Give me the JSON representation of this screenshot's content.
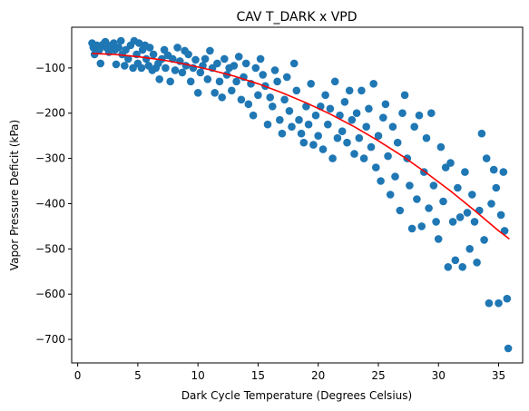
{
  "chart_data": {
    "type": "scatter",
    "title": "CAV T_DARK x VPD",
    "xlabel": "Dark Cycle Temperature (Degrees Celsius)",
    "ylabel": "Vapor Pressure Deficit (kPa)",
    "xlim": [
      -0.5,
      37.0
    ],
    "ylim": [
      -752,
      -10
    ],
    "x_ticks": [
      0,
      5,
      10,
      15,
      20,
      25,
      30,
      35
    ],
    "y_ticks": [
      -700,
      -600,
      -500,
      -400,
      -300,
      -200,
      -100
    ],
    "grid": false,
    "colors": {
      "points": "#1f77b4",
      "fit": "#ff0000"
    },
    "points": [
      [
        1.2,
        -45
      ],
      [
        1.3,
        -55
      ],
      [
        1.4,
        -70
      ],
      [
        1.6,
        -50
      ],
      [
        1.8,
        -60
      ],
      [
        1.9,
        -90
      ],
      [
        2.1,
        -48
      ],
      [
        2.3,
        -42
      ],
      [
        2.4,
        -55
      ],
      [
        2.6,
        -65
      ],
      [
        2.8,
        -50
      ],
      [
        3.0,
        -45
      ],
      [
        3.1,
        -60
      ],
      [
        3.2,
        -92
      ],
      [
        3.4,
        -55
      ],
      [
        3.6,
        -40
      ],
      [
        3.7,
        -70
      ],
      [
        3.9,
        -95
      ],
      [
        4.0,
        -60
      ],
      [
        4.2,
        -80
      ],
      [
        4.4,
        -50
      ],
      [
        4.6,
        -100
      ],
      [
        4.7,
        -40
      ],
      [
        4.9,
        -70
      ],
      [
        5.0,
        -90
      ],
      [
        5.1,
        -45
      ],
      [
        5.3,
        -100
      ],
      [
        5.4,
        -60
      ],
      [
        5.6,
        -50
      ],
      [
        5.7,
        -80
      ],
      [
        5.9,
        -95
      ],
      [
        6.0,
        -55
      ],
      [
        6.2,
        -105
      ],
      [
        6.3,
        -70
      ],
      [
        6.5,
        -100
      ],
      [
        6.7,
        -90
      ],
      [
        6.8,
        -125
      ],
      [
        7.0,
        -80
      ],
      [
        7.2,
        -60
      ],
      [
        7.3,
        -100
      ],
      [
        7.5,
        -72
      ],
      [
        7.7,
        -130
      ],
      [
        7.9,
        -80
      ],
      [
        8.1,
        -105
      ],
      [
        8.3,
        -55
      ],
      [
        8.5,
        -85
      ],
      [
        8.7,
        -110
      ],
      [
        8.9,
        -62
      ],
      [
        9.0,
        -95
      ],
      [
        9.2,
        -70
      ],
      [
        9.4,
        -130
      ],
      [
        9.6,
        -100
      ],
      [
        9.8,
        -82
      ],
      [
        10.0,
        -155
      ],
      [
        10.2,
        -110
      ],
      [
        10.4,
        -95
      ],
      [
        10.6,
        -80
      ],
      [
        10.8,
        -125
      ],
      [
        11.0,
        -62
      ],
      [
        11.2,
        -100
      ],
      [
        11.4,
        -155
      ],
      [
        11.6,
        -90
      ],
      [
        11.8,
        -130
      ],
      [
        12.0,
        -165
      ],
      [
        12.2,
        -80
      ],
      [
        12.4,
        -115
      ],
      [
        12.6,
        -100
      ],
      [
        12.8,
        -150
      ],
      [
        13.0,
        -95
      ],
      [
        13.2,
        -130
      ],
      [
        13.4,
        -75
      ],
      [
        13.6,
        -170
      ],
      [
        13.8,
        -120
      ],
      [
        14.0,
        -90
      ],
      [
        14.2,
        -180
      ],
      [
        14.4,
        -135
      ],
      [
        14.6,
        -205
      ],
      [
        14.8,
        -100
      ],
      [
        15.0,
        -160
      ],
      [
        15.2,
        -80
      ],
      [
        15.4,
        -115
      ],
      [
        15.6,
        -140
      ],
      [
        15.8,
        -225
      ],
      [
        16.0,
        -165
      ],
      [
        16.2,
        -185
      ],
      [
        16.4,
        -105
      ],
      [
        16.6,
        -130
      ],
      [
        16.8,
        -215
      ],
      [
        17.0,
        -245
      ],
      [
        17.2,
        -170
      ],
      [
        17.4,
        -120
      ],
      [
        17.6,
        -195
      ],
      [
        17.8,
        -230
      ],
      [
        18.0,
        -90
      ],
      [
        18.2,
        -150
      ],
      [
        18.4,
        -215
      ],
      [
        18.6,
        -245
      ],
      [
        18.8,
        -265
      ],
      [
        19.0,
        -185
      ],
      [
        19.2,
        -225
      ],
      [
        19.4,
        -135
      ],
      [
        19.6,
        -270
      ],
      [
        19.8,
        -205
      ],
      [
        20.0,
        -250
      ],
      [
        20.2,
        -185
      ],
      [
        20.4,
        -280
      ],
      [
        20.6,
        -160
      ],
      [
        20.8,
        -225
      ],
      [
        21.0,
        -190
      ],
      [
        21.2,
        -300
      ],
      [
        21.4,
        -130
      ],
      [
        21.6,
        -255
      ],
      [
        21.8,
        -205
      ],
      [
        22.0,
        -240
      ],
      [
        22.2,
        -175
      ],
      [
        22.4,
        -265
      ],
      [
        22.6,
        -150
      ],
      [
        22.8,
        -215
      ],
      [
        23.0,
        -290
      ],
      [
        23.2,
        -200
      ],
      [
        23.4,
        -255
      ],
      [
        23.6,
        -150
      ],
      [
        23.8,
        -300
      ],
      [
        24.0,
        -230
      ],
      [
        24.2,
        -190
      ],
      [
        24.4,
        -275
      ],
      [
        24.6,
        -135
      ],
      [
        24.8,
        -320
      ],
      [
        25.0,
        -250
      ],
      [
        25.2,
        -350
      ],
      [
        25.4,
        -210
      ],
      [
        25.6,
        -180
      ],
      [
        25.8,
        -295
      ],
      [
        26.0,
        -380
      ],
      [
        26.2,
        -230
      ],
      [
        26.4,
        -340
      ],
      [
        26.6,
        -265
      ],
      [
        26.8,
        -415
      ],
      [
        27.0,
        -200
      ],
      [
        27.2,
        -160
      ],
      [
        27.4,
        -300
      ],
      [
        27.6,
        -360
      ],
      [
        27.8,
        -455
      ],
      [
        28.0,
        -230
      ],
      [
        28.2,
        -390
      ],
      [
        28.4,
        -205
      ],
      [
        28.6,
        -450
      ],
      [
        28.8,
        -330
      ],
      [
        29.0,
        -255
      ],
      [
        29.2,
        -410
      ],
      [
        29.4,
        -200
      ],
      [
        29.6,
        -360
      ],
      [
        29.8,
        -440
      ],
      [
        30.0,
        -478
      ],
      [
        30.2,
        -275
      ],
      [
        30.4,
        -395
      ],
      [
        30.6,
        -320
      ],
      [
        30.8,
        -540
      ],
      [
        31.0,
        -310
      ],
      [
        31.2,
        -440
      ],
      [
        31.4,
        -525
      ],
      [
        31.6,
        -365
      ],
      [
        31.8,
        -430
      ],
      [
        32.0,
        -540
      ],
      [
        32.2,
        -330
      ],
      [
        32.4,
        -420
      ],
      [
        32.6,
        -500
      ],
      [
        32.8,
        -380
      ],
      [
        33.0,
        -440
      ],
      [
        33.2,
        -530
      ],
      [
        33.4,
        -415
      ],
      [
        33.6,
        -245
      ],
      [
        33.8,
        -480
      ],
      [
        34.0,
        -300
      ],
      [
        34.2,
        -620
      ],
      [
        34.4,
        -400
      ],
      [
        34.6,
        -325
      ],
      [
        34.8,
        -365
      ],
      [
        35.0,
        -620
      ],
      [
        35.2,
        -425
      ],
      [
        35.4,
        -330
      ],
      [
        35.5,
        -460
      ],
      [
        35.7,
        -610
      ],
      [
        35.8,
        -720
      ]
    ],
    "fit": {
      "x": [
        1.2,
        3,
        5,
        7,
        9,
        11,
        13,
        15,
        17,
        19,
        21,
        23,
        25,
        27,
        29,
        31,
        33,
        35,
        35.9
      ],
      "y": [
        -68,
        -70,
        -75,
        -82,
        -92,
        -104,
        -118,
        -135,
        -155,
        -177,
        -202,
        -230,
        -261,
        -295,
        -332,
        -372,
        -415,
        -460,
        -478
      ]
    }
  }
}
